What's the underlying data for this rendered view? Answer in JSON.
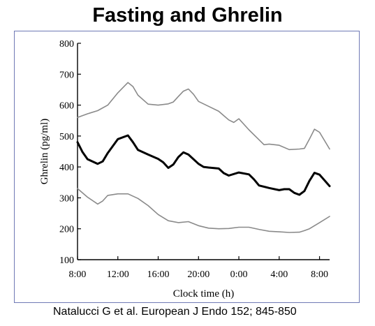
{
  "page": {
    "title": "Fasting and Ghrelin",
    "citation": "Natalucci G et al. European J Endo 152; 845-850"
  },
  "chart_data": {
    "type": "line",
    "title": "",
    "xlabel": "Clock time (h)",
    "ylabel": "Ghrelin (pg/ml)",
    "xlim": [
      8,
      33
    ],
    "ylim": [
      100,
      800
    ],
    "x_unit": "clock hour (hours from 8:00 on day 1; values above 24 are the next day)",
    "x_ticks": [
      8,
      12,
      16,
      20,
      24,
      28,
      32
    ],
    "x_tick_labels": [
      "8:00",
      "12:00",
      "16:00",
      "20:00",
      "0:00",
      "4:00",
      "8:00"
    ],
    "y_ticks": [
      100,
      200,
      300,
      400,
      500,
      600,
      700,
      800
    ],
    "y_tick_labels": [
      "100",
      "200",
      "300",
      "400",
      "500",
      "600",
      "700",
      "800"
    ],
    "grid": false,
    "legend": "none",
    "series": [
      {
        "role": "upper",
        "color": "#8a8a8a",
        "points": [
          [
            8,
            560
          ],
          [
            9,
            572
          ],
          [
            10,
            582
          ],
          [
            11,
            600
          ],
          [
            12,
            640
          ],
          [
            13,
            673
          ],
          [
            13.5,
            660
          ],
          [
            14,
            632
          ],
          [
            15,
            603
          ],
          [
            16,
            600
          ],
          [
            17,
            604
          ],
          [
            17.5,
            610
          ],
          [
            18,
            628
          ],
          [
            18.5,
            645
          ],
          [
            19,
            652
          ],
          [
            19.5,
            635
          ],
          [
            20,
            612
          ],
          [
            21,
            596
          ],
          [
            22,
            580
          ],
          [
            22.5,
            566
          ],
          [
            23,
            552
          ],
          [
            23.5,
            544
          ],
          [
            24,
            556
          ],
          [
            25,
            520
          ],
          [
            26,
            488
          ],
          [
            26.5,
            472
          ],
          [
            27,
            474
          ],
          [
            28,
            470
          ],
          [
            29,
            456
          ],
          [
            30,
            458
          ],
          [
            30.5,
            460
          ],
          [
            31,
            490
          ],
          [
            31.5,
            522
          ],
          [
            32,
            512
          ],
          [
            33,
            458
          ]
        ]
      },
      {
        "role": "mean",
        "color": "#000000",
        "points": [
          [
            8,
            480
          ],
          [
            8.5,
            448
          ],
          [
            9,
            425
          ],
          [
            10,
            410
          ],
          [
            10.5,
            418
          ],
          [
            11,
            445
          ],
          [
            12,
            490
          ],
          [
            13,
            502
          ],
          [
            13.5,
            480
          ],
          [
            14,
            455
          ],
          [
            15,
            440
          ],
          [
            15.5,
            433
          ],
          [
            16,
            426
          ],
          [
            16.5,
            415
          ],
          [
            17,
            397
          ],
          [
            17.5,
            408
          ],
          [
            18,
            432
          ],
          [
            18.5,
            447
          ],
          [
            19,
            440
          ],
          [
            20,
            410
          ],
          [
            20.5,
            400
          ],
          [
            21,
            398
          ],
          [
            22,
            395
          ],
          [
            22.5,
            380
          ],
          [
            23,
            372
          ],
          [
            24,
            382
          ],
          [
            25,
            376
          ],
          [
            25.5,
            360
          ],
          [
            26,
            340
          ],
          [
            27,
            332
          ],
          [
            28,
            325
          ],
          [
            28.5,
            328
          ],
          [
            29,
            328
          ],
          [
            29.5,
            316
          ],
          [
            30,
            310
          ],
          [
            30.5,
            322
          ],
          [
            31,
            355
          ],
          [
            31.5,
            381
          ],
          [
            32,
            375
          ],
          [
            33,
            338
          ]
        ]
      },
      {
        "role": "lower",
        "color": "#8a8a8a",
        "points": [
          [
            8,
            330
          ],
          [
            9,
            302
          ],
          [
            10,
            280
          ],
          [
            10.5,
            290
          ],
          [
            11,
            308
          ],
          [
            12,
            313
          ],
          [
            13,
            313
          ],
          [
            14,
            298
          ],
          [
            15,
            275
          ],
          [
            16,
            246
          ],
          [
            17,
            226
          ],
          [
            18,
            220
          ],
          [
            19,
            223
          ],
          [
            20,
            210
          ],
          [
            21,
            202
          ],
          [
            22,
            200
          ],
          [
            23,
            201
          ],
          [
            24,
            205
          ],
          [
            25,
            205
          ],
          [
            26,
            198
          ],
          [
            27,
            192
          ],
          [
            28,
            190
          ],
          [
            29,
            188
          ],
          [
            30,
            189
          ],
          [
            30.5,
            194
          ],
          [
            31,
            200
          ],
          [
            32,
            220
          ],
          [
            33,
            240
          ]
        ]
      }
    ]
  }
}
